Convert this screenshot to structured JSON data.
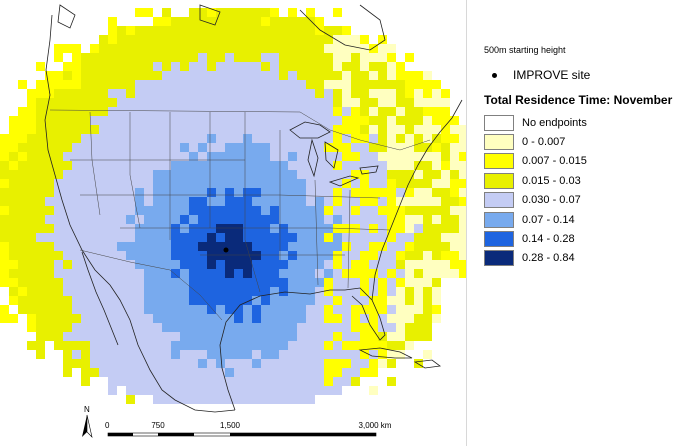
{
  "legend": {
    "subtitle": "500m starting height",
    "site_label": "IMPROVE site",
    "title": "Total Residence Time: November",
    "classes": [
      {
        "label": "No endpoints",
        "color": "#ffffff"
      },
      {
        "label": "0 - 0.007",
        "color": "#ffffc0"
      },
      {
        "label": "0.007 - 0.015",
        "color": "#ffff00"
      },
      {
        "label": "0.015 - 0.03",
        "color": "#e8f000"
      },
      {
        "label": "0.030 - 0.07",
        "color": "#c4ccf4"
      },
      {
        "label": "0.07 - 0.14",
        "color": "#78aaee"
      },
      {
        "label": "0.14 - 0.28",
        "color": "#1e64e0"
      },
      {
        "label": "0.28 - 0.84",
        "color": "#0a2a7a"
      }
    ]
  },
  "scalebar": {
    "ticks": [
      "0",
      "750",
      "1,500",
      "3,000 km"
    ]
  },
  "north_arrow": {
    "label": "N"
  }
}
